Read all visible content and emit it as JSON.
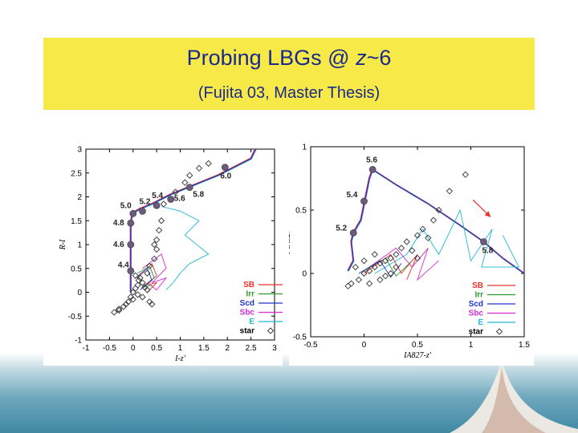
{
  "slide": {
    "title_prefix": "Probing LBGs @ ",
    "title_z": "z",
    "title_suffix": "~6",
    "subtitle": "(Fujita 03, Master Thesis)"
  },
  "colors": {
    "title_bg": "#f7e948",
    "title_text": "#1a2a8c",
    "SB": "#e8322c",
    "Irr": "#2e9a2e",
    "Scd": "#2233cc",
    "Sbc": "#d12bd1",
    "E": "#22b8d6",
    "star": "#333333",
    "marker": "#6b5d7a",
    "arrow": "#e8322c"
  },
  "chart_data": [
    {
      "type": "scatter",
      "xlabel": "I-z'",
      "ylabel": "R-I",
      "xlim": [
        -1,
        3
      ],
      "ylim": [
        -1,
        3
      ],
      "xticks": [
        "-1",
        "-0.5",
        "0",
        "0.5",
        "1",
        "1.5",
        "2",
        "2.5",
        "3"
      ],
      "yticks": [
        "-1",
        "-0.5",
        "0",
        "0.5",
        "1",
        "1.5",
        "2",
        "2.5",
        "3"
      ],
      "legend": [
        "SB",
        "Irr",
        "Scd",
        "Sbc",
        "E",
        "star"
      ],
      "legend_position": "bottom-right",
      "track": [
        [
          -0.05,
          0.0
        ],
        [
          -0.05,
          0.5
        ],
        [
          -0.05,
          1.0
        ],
        [
          -0.05,
          1.4
        ],
        [
          -0.02,
          1.65
        ],
        [
          0.15,
          1.75
        ],
        [
          0.4,
          1.85
        ],
        [
          0.8,
          2.05
        ],
        [
          1.3,
          2.25
        ],
        [
          1.8,
          2.45
        ],
        [
          2.2,
          2.65
        ],
        [
          2.5,
          2.8
        ],
        [
          2.6,
          3.0
        ]
      ],
      "redshift_markers": [
        {
          "label": "4.4",
          "x": -0.05,
          "y": 0.45
        },
        {
          "label": "4.6",
          "x": -0.05,
          "y": 1.0
        },
        {
          "label": "4.8",
          "x": -0.05,
          "y": 1.45
        },
        {
          "label": "5.0",
          "x": 0.0,
          "y": 1.65
        },
        {
          "label": "5.2",
          "x": 0.2,
          "y": 1.7
        },
        {
          "label": "5.4",
          "x": 0.5,
          "y": 1.82
        },
        {
          "label": "5.6",
          "x": 0.8,
          "y": 1.95
        },
        {
          "label": "5.8",
          "x": 1.2,
          "y": 2.2
        },
        {
          "label": "6.0",
          "x": 1.95,
          "y": 2.62
        }
      ],
      "stars": [
        [
          -0.4,
          -0.42
        ],
        [
          -0.3,
          -0.38
        ],
        [
          -0.2,
          -0.3
        ],
        [
          -0.1,
          -0.2
        ],
        [
          -0.05,
          -0.1
        ],
        [
          0.0,
          0.0
        ],
        [
          0.05,
          0.08
        ],
        [
          0.1,
          0.15
        ],
        [
          0.12,
          0.25
        ],
        [
          0.15,
          0.3
        ],
        [
          0.05,
          0.35
        ],
        [
          0.2,
          0.2
        ],
        [
          0.25,
          0.1
        ],
        [
          0.3,
          0.05
        ],
        [
          0.1,
          -0.05
        ],
        [
          -0.15,
          -0.25
        ],
        [
          0.35,
          -0.2
        ],
        [
          0.4,
          -0.25
        ],
        [
          0.35,
          0.55
        ],
        [
          0.45,
          0.7
        ],
        [
          0.5,
          0.9
        ],
        [
          0.45,
          1.0
        ],
        [
          0.5,
          1.1
        ],
        [
          0.55,
          1.3
        ],
        [
          0.6,
          1.5
        ],
        [
          0.65,
          1.85
        ],
        [
          0.9,
          2.1
        ],
        [
          1.1,
          2.3
        ],
        [
          1.2,
          2.45
        ],
        [
          1.4,
          2.6
        ],
        [
          1.6,
          2.7
        ],
        [
          -0.3,
          -0.35
        ],
        [
          0.0,
          -0.15
        ],
        [
          0.3,
          0.4
        ],
        [
          0.2,
          -0.1
        ]
      ]
    },
    {
      "type": "scatter",
      "xlabel": "IA827-z'",
      "ylabel": "I-IA827",
      "xlim": [
        -0.5,
        1.5
      ],
      "ylim": [
        -0.5,
        1
      ],
      "xticks": [
        "-0.5",
        "0",
        "0.5",
        "1",
        "1.5"
      ],
      "yticks": [
        "-0.5",
        "0",
        "0.5",
        "1"
      ],
      "legend": [
        "SB",
        "Irr",
        "Scd",
        "Sbc",
        "E",
        "star"
      ],
      "legend_position": "bottom-right",
      "track": [
        [
          -0.15,
          0.02
        ],
        [
          -0.1,
          0.1
        ],
        [
          -0.12,
          0.25
        ],
        [
          -0.1,
          0.32
        ],
        [
          -0.03,
          0.42
        ],
        [
          0.05,
          0.75
        ],
        [
          0.08,
          0.82
        ],
        [
          0.3,
          0.7
        ],
        [
          0.6,
          0.55
        ],
        [
          0.9,
          0.38
        ],
        [
          1.12,
          0.25
        ],
        [
          1.3,
          0.12
        ],
        [
          1.5,
          0.0
        ]
      ],
      "redshift_markers": [
        {
          "label": "5.2",
          "x": -0.1,
          "y": 0.32
        },
        {
          "label": "5.4",
          "x": 0.0,
          "y": 0.57
        },
        {
          "label": "5.6",
          "x": 0.08,
          "y": 0.82
        },
        {
          "label": "5.8",
          "x": 1.12,
          "y": 0.25
        }
      ],
      "stars": [
        [
          -0.12,
          -0.08
        ],
        [
          -0.05,
          -0.05
        ],
        [
          0.0,
          0.0
        ],
        [
          0.05,
          0.02
        ],
        [
          0.1,
          0.05
        ],
        [
          0.15,
          0.08
        ],
        [
          0.2,
          0.1
        ],
        [
          0.25,
          0.12
        ],
        [
          0.3,
          0.15
        ],
        [
          0.35,
          0.2
        ],
        [
          0.0,
          0.1
        ],
        [
          0.1,
          0.15
        ],
        [
          0.05,
          -0.08
        ],
        [
          0.2,
          -0.02
        ],
        [
          0.4,
          0.25
        ],
        [
          0.45,
          0.18
        ],
        [
          0.5,
          0.3
        ],
        [
          0.55,
          0.35
        ],
        [
          0.6,
          0.28
        ],
        [
          0.7,
          0.5
        ],
        [
          0.65,
          0.42
        ],
        [
          0.8,
          0.65
        ],
        [
          0.95,
          0.78
        ],
        [
          -0.08,
          0.05
        ],
        [
          0.15,
          -0.05
        ],
        [
          0.3,
          0.05
        ],
        [
          0.25,
          0.0
        ],
        [
          -0.15,
          -0.1
        ],
        [
          0.5,
          0.12
        ]
      ]
    }
  ]
}
